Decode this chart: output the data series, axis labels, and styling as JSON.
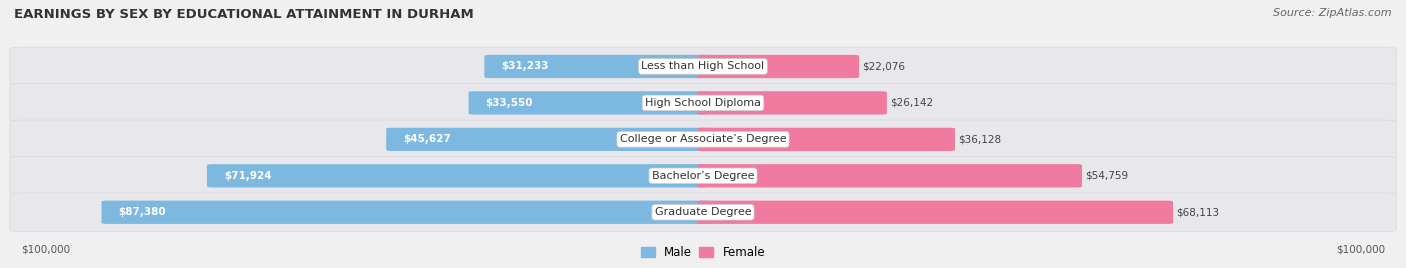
{
  "title": "EARNINGS BY SEX BY EDUCATIONAL ATTAINMENT IN DURHAM",
  "source": "Source: ZipAtlas.com",
  "categories": [
    "Less than High School",
    "High School Diploma",
    "College or Associate’s Degree",
    "Bachelor’s Degree",
    "Graduate Degree"
  ],
  "male_values": [
    31233,
    33550,
    45627,
    71924,
    87380
  ],
  "female_values": [
    22076,
    26142,
    36128,
    54759,
    68113
  ],
  "male_color": "#7db8e0",
  "female_color": "#f07aa0",
  "male_label": "Male",
  "female_label": "Female",
  "max_value": 100000,
  "bg_color": "#f0f0f0",
  "row_bg_color": "#e8e8ec",
  "row_bg_edge": "#d8d8dc",
  "title_fontsize": 9.5,
  "source_fontsize": 8,
  "label_fontsize": 8,
  "value_fontsize": 7.5,
  "tick_fontsize": 7.5
}
